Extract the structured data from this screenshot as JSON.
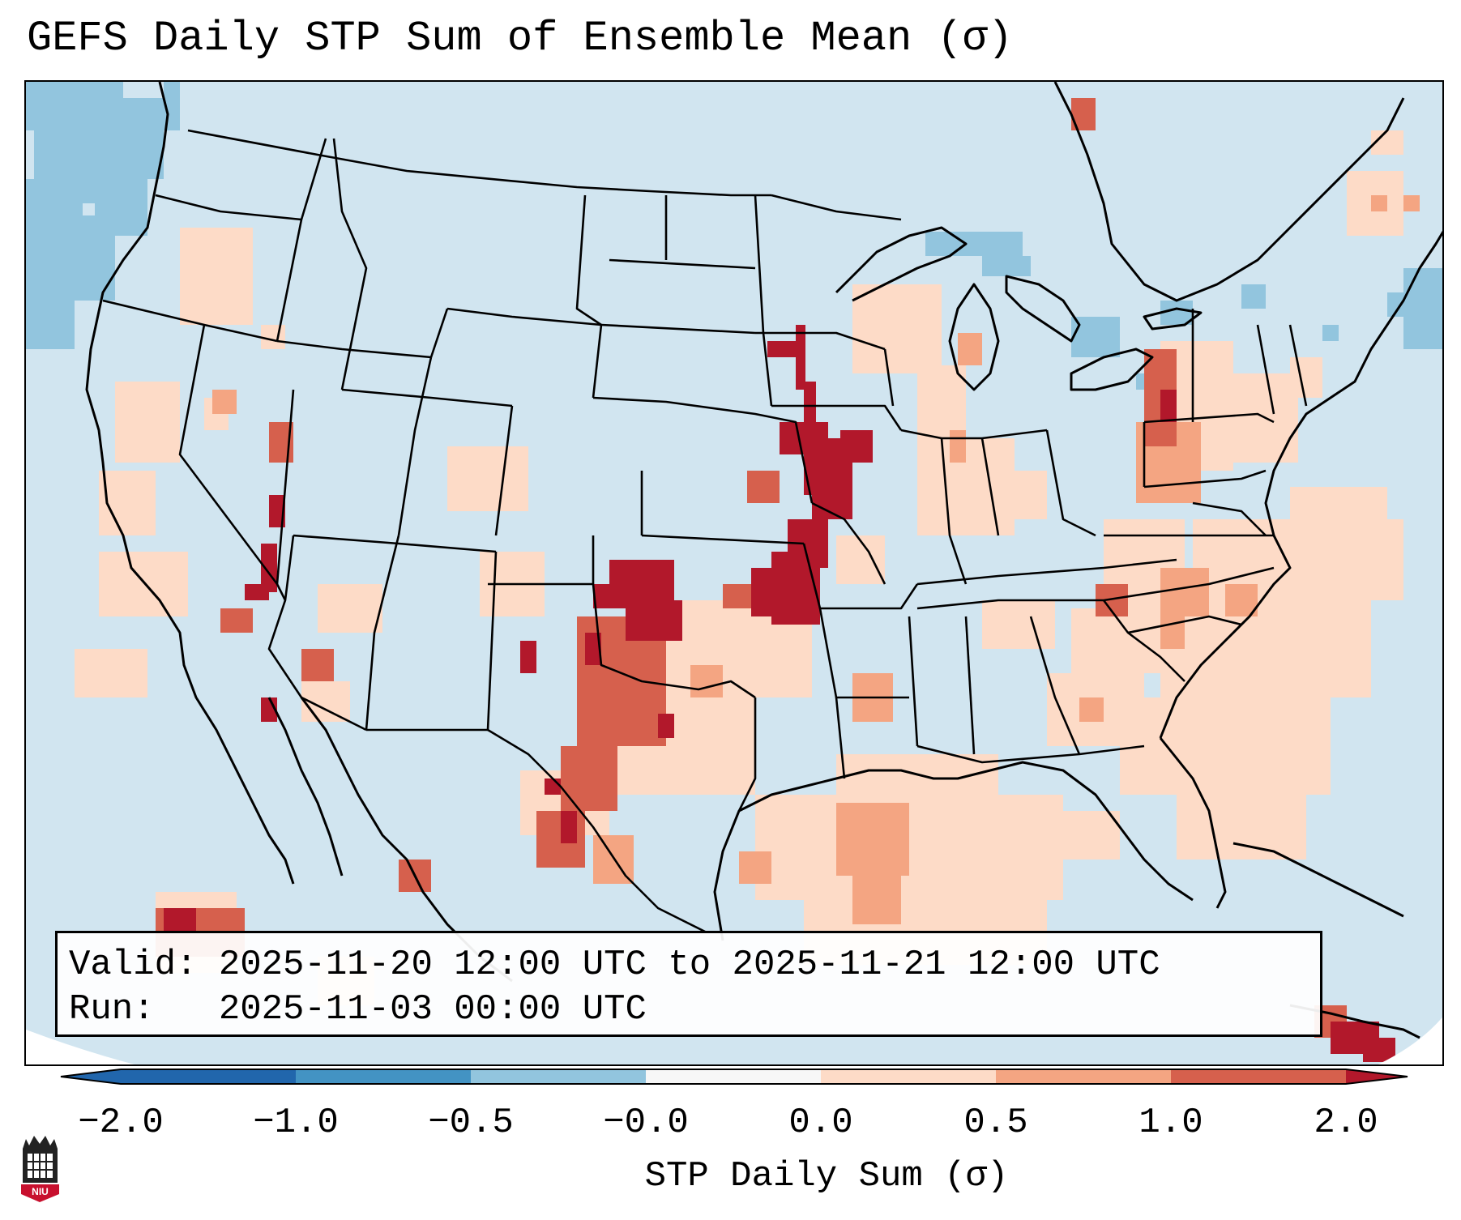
{
  "title": "GEFS Daily STP Sum of Ensemble Mean (σ)",
  "valid_line": "Valid: 2025-11-20 12:00 UTC to 2025-11-21 12:00 UTC",
  "run_line": "Run:   2025-11-03 00:00 UTC",
  "colorbar": {
    "label": "STP Daily Sum (σ)",
    "ticks": [
      "−2.0",
      "−1.0",
      "−0.5",
      "−0.0",
      "0.0",
      "0.5",
      "1.0",
      "2.0"
    ],
    "colors": [
      "#2166ac",
      "#4393c3",
      "#92c5de",
      "#d1e5f0",
      "#f7f7f7",
      "#fddbc7",
      "#f4a582",
      "#d6604d",
      "#b2182b"
    ],
    "extend": "both"
  },
  "map": {
    "background_color": "#d1e5f0",
    "region": "Contiguous United States",
    "anomaly_highlights": [
      {
        "area": "Iowa / southern Minnesota",
        "value": 2.0
      },
      {
        "area": "Northeastern Missouri",
        "value": 2.0
      },
      {
        "area": "Kansas / Oklahoma border",
        "value": 2.0
      },
      {
        "area": "Western Oklahoma / Texas panhandle",
        "value": 1.0
      },
      {
        "area": "Southern Nevada",
        "value": 2.0
      },
      {
        "area": "Western Pennsylvania",
        "value": 1.0
      },
      {
        "area": "Atlantic off Carolinas",
        "value": 0.5
      },
      {
        "area": "Gulf of Mexico",
        "value": 0.5
      },
      {
        "area": "Pacific off Washington/Oregon",
        "value": -0.5
      }
    ]
  },
  "logo": {
    "text": "NIU"
  }
}
